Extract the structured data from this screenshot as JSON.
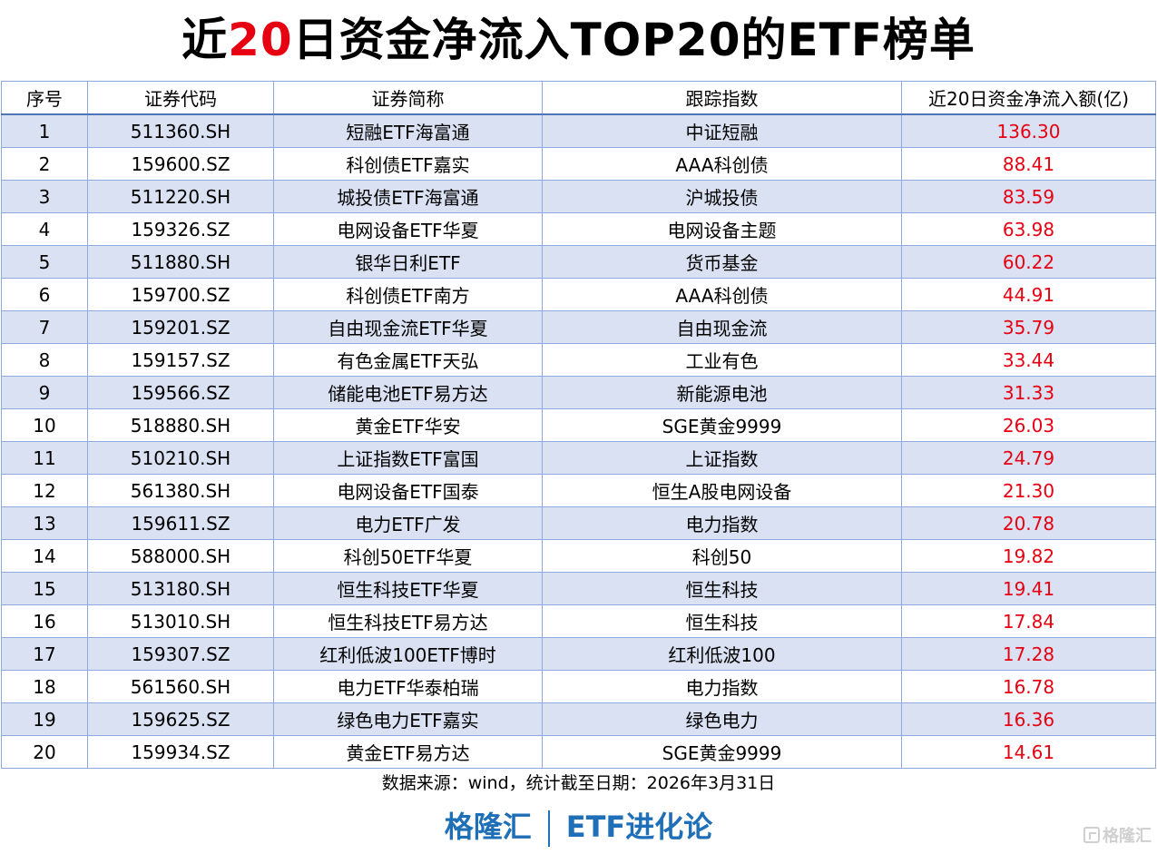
{
  "title": {
    "prefix": "近",
    "highlight": "20",
    "suffix": "日资金净流入TOP20的ETF榜单",
    "highlight_color": "#e60012"
  },
  "table": {
    "headers": [
      "序号",
      "证券代码",
      "证券简称",
      "跟踪指数",
      "近20日资金净流入额(亿)"
    ],
    "rows": [
      {
        "rank": "1",
        "code": "511360.SH",
        "name": "短融ETF海富通",
        "index": "中证短融",
        "inflow": "136.30"
      },
      {
        "rank": "2",
        "code": "159600.SZ",
        "name": "科创债ETF嘉实",
        "index": "AAA科创债",
        "inflow": "88.41"
      },
      {
        "rank": "3",
        "code": "511220.SH",
        "name": "城投债ETF海富通",
        "index": "沪城投债",
        "inflow": "83.59"
      },
      {
        "rank": "4",
        "code": "159326.SZ",
        "name": "电网设备ETF华夏",
        "index": "电网设备主题",
        "inflow": "63.98"
      },
      {
        "rank": "5",
        "code": "511880.SH",
        "name": "银华日利ETF",
        "index": "货币基金",
        "inflow": "60.22"
      },
      {
        "rank": "6",
        "code": "159700.SZ",
        "name": "科创债ETF南方",
        "index": "AAA科创债",
        "inflow": "44.91"
      },
      {
        "rank": "7",
        "code": "159201.SZ",
        "name": "自由现金流ETF华夏",
        "index": "自由现金流",
        "inflow": "35.79"
      },
      {
        "rank": "8",
        "code": "159157.SZ",
        "name": "有色金属ETF天弘",
        "index": "工业有色",
        "inflow": "33.44"
      },
      {
        "rank": "9",
        "code": "159566.SZ",
        "name": "储能电池ETF易方达",
        "index": "新能源电池",
        "inflow": "31.33"
      },
      {
        "rank": "10",
        "code": "518880.SH",
        "name": "黄金ETF华安",
        "index": "SGE黄金9999",
        "inflow": "26.03"
      },
      {
        "rank": "11",
        "code": "510210.SH",
        "name": "上证指数ETF富国",
        "index": "上证指数",
        "inflow": "24.79"
      },
      {
        "rank": "12",
        "code": "561380.SH",
        "name": "电网设备ETF国泰",
        "index": "恒生A股电网设备",
        "inflow": "21.30"
      },
      {
        "rank": "13",
        "code": "159611.SZ",
        "name": "电力ETF广发",
        "index": "电力指数",
        "inflow": "20.78"
      },
      {
        "rank": "14",
        "code": "588000.SH",
        "name": "科创50ETF华夏",
        "index": "科创50",
        "inflow": "19.82"
      },
      {
        "rank": "15",
        "code": "513180.SH",
        "name": "恒生科技ETF华夏",
        "index": "恒生科技",
        "inflow": "19.41"
      },
      {
        "rank": "16",
        "code": "513010.SH",
        "name": "恒生科技ETF易方达",
        "index": "恒生科技",
        "inflow": "17.84"
      },
      {
        "rank": "17",
        "code": "159307.SZ",
        "name": "红利低波100ETF博时",
        "index": "红利低波100",
        "inflow": "17.28"
      },
      {
        "rank": "18",
        "code": "561560.SH",
        "name": "电力ETF华泰柏瑞",
        "index": "电力指数",
        "inflow": "16.78"
      },
      {
        "rank": "19",
        "code": "159625.SZ",
        "name": "绿色电力ETF嘉实",
        "index": "绿色电力",
        "inflow": "16.36"
      },
      {
        "rank": "20",
        "code": "159934.SZ",
        "name": "黄金ETF易方达",
        "index": "SGE黄金9999",
        "inflow": "14.61"
      }
    ]
  },
  "footer": {
    "source": "数据来源：wind，统计截至日期：2026年3月31日",
    "brand_left": "格隆汇",
    "brand_right": "ETF进化论",
    "watermark": "格隆汇"
  },
  "colors": {
    "accent_red": "#e60012",
    "brand_blue": "#1e6fb8",
    "row_stripe": "#d9e1f2",
    "border": "#8eaadb"
  }
}
